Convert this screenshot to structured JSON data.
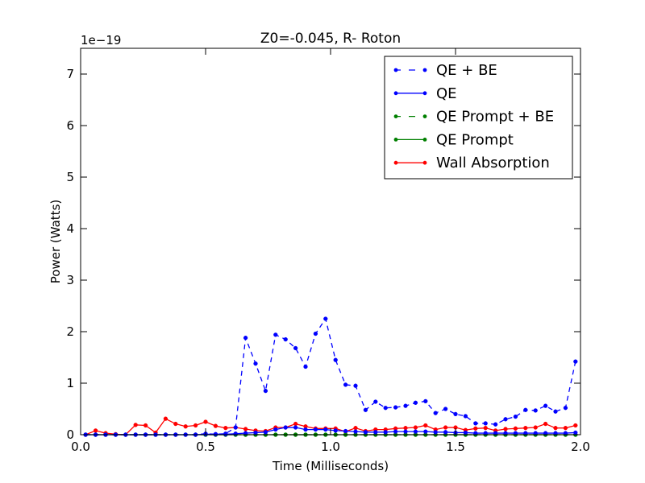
{
  "chart_data": {
    "type": "line",
    "title": "Z0=-0.045, R- Roton",
    "xlabel": "Time (Milliseconds)",
    "ylabel": "Power (Watts)",
    "y_scale_label": "1e−19",
    "xlim": [
      0.0,
      2.0
    ],
    "ylim": [
      0,
      7.5
    ],
    "xticks": [
      0.0,
      0.5,
      1.0,
      1.5,
      2.0
    ],
    "xtick_labels": [
      "0.0",
      "0.5",
      "1.0",
      "1.5",
      "2.0"
    ],
    "yticks": [
      0,
      1,
      2,
      3,
      4,
      5,
      6,
      7
    ],
    "ytick_labels": [
      "0",
      "1",
      "2",
      "3",
      "4",
      "5",
      "6",
      "7"
    ],
    "grid": false,
    "legend_position": "top-right",
    "x": [
      0.02,
      0.06,
      0.1,
      0.14,
      0.18,
      0.22,
      0.26,
      0.3,
      0.34,
      0.38,
      0.42,
      0.46,
      0.5,
      0.54,
      0.58,
      0.62,
      0.66,
      0.7,
      0.74,
      0.78,
      0.82,
      0.86,
      0.9,
      0.94,
      0.98,
      1.02,
      1.06,
      1.1,
      1.14,
      1.18,
      1.22,
      1.26,
      1.3,
      1.34,
      1.38,
      1.42,
      1.46,
      1.5,
      1.54,
      1.58,
      1.62,
      1.66,
      1.7,
      1.74,
      1.78,
      1.82,
      1.86,
      1.9,
      1.94,
      1.98
    ],
    "series": [
      {
        "name": "QE + BE",
        "color": "#0000ff",
        "dash": true,
        "values": [
          0,
          0,
          0,
          0,
          0,
          0,
          0,
          0,
          0,
          0,
          0,
          0,
          0.02,
          0.01,
          0.02,
          0.14,
          1.88,
          1.38,
          0.85,
          1.94,
          1.85,
          1.68,
          1.32,
          1.96,
          2.25,
          1.45,
          0.97,
          0.95,
          0.48,
          0.64,
          0.52,
          0.53,
          0.56,
          0.62,
          0.65,
          0.42,
          0.5,
          0.4,
          0.36,
          0.22,
          0.22,
          0.2,
          0.3,
          0.35,
          0.48,
          0.47,
          0.56,
          0.45,
          0.52,
          1.42
        ]
      },
      {
        "name": "QE",
        "color": "#0000ff",
        "dash": false,
        "values": [
          0,
          0,
          0,
          0,
          0,
          0,
          0,
          0,
          0,
          0,
          0,
          0,
          0.01,
          0.01,
          0.01,
          0.02,
          0.03,
          0.04,
          0.05,
          0.1,
          0.14,
          0.14,
          0.1,
          0.1,
          0.1,
          0.08,
          0.07,
          0.06,
          0.05,
          0.05,
          0.05,
          0.06,
          0.06,
          0.06,
          0.06,
          0.05,
          0.05,
          0.04,
          0.04,
          0.03,
          0.03,
          0.03,
          0.03,
          0.03,
          0.03,
          0.03,
          0.03,
          0.03,
          0.03,
          0.04
        ]
      },
      {
        "name": "QE Prompt + BE",
        "color": "#008000",
        "dash": true,
        "values": [
          0,
          0,
          0,
          0,
          0,
          0,
          0,
          0,
          0,
          0,
          0,
          0,
          0,
          0,
          0,
          0,
          0,
          0,
          0,
          0,
          0,
          0,
          0,
          0,
          0,
          0,
          0,
          0,
          0,
          0,
          0,
          0,
          0,
          0,
          0,
          0,
          0,
          0,
          0,
          0,
          0,
          0,
          0,
          0,
          0,
          0,
          0,
          0,
          0,
          0
        ]
      },
      {
        "name": "QE Prompt",
        "color": "#008000",
        "dash": false,
        "values": [
          0,
          0,
          0,
          0,
          0,
          0,
          0,
          0,
          0,
          0,
          0,
          0,
          0,
          0,
          0,
          0,
          0,
          0,
          0,
          0,
          0,
          0,
          0,
          0,
          0,
          0,
          0,
          0,
          0,
          0,
          0,
          0,
          0,
          0,
          0,
          0,
          0,
          0,
          0,
          0,
          0,
          0,
          0,
          0,
          0,
          0,
          0,
          0,
          0,
          0
        ]
      },
      {
        "name": "Wall Absorption",
        "color": "#ff0000",
        "dash": false,
        "values": [
          0,
          0.08,
          0.03,
          0.01,
          0,
          0.19,
          0.18,
          0.04,
          0.31,
          0.21,
          0.16,
          0.18,
          0.25,
          0.17,
          0.13,
          0.14,
          0.11,
          0.08,
          0.07,
          0.14,
          0.14,
          0.21,
          0.16,
          0.12,
          0.12,
          0.12,
          0.06,
          0.13,
          0.07,
          0.1,
          0.1,
          0.12,
          0.13,
          0.14,
          0.18,
          0.1,
          0.14,
          0.14,
          0.09,
          0.12,
          0.13,
          0.08,
          0.11,
          0.12,
          0.13,
          0.14,
          0.21,
          0.13,
          0.13,
          0.18
        ]
      }
    ]
  }
}
